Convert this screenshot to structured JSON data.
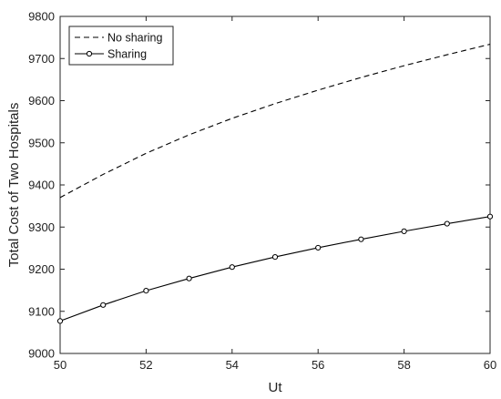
{
  "chart_data": {
    "type": "line",
    "title": "",
    "xlabel": "Ut",
    "ylabel": "Total Cost of Two Hospitals",
    "xlim": [
      50,
      60
    ],
    "ylim": [
      9000,
      9800
    ],
    "xticks": [
      "50",
      "52",
      "54",
      "56",
      "58",
      "60"
    ],
    "yticks": [
      "9000",
      "9100",
      "9200",
      "9300",
      "9400",
      "9500",
      "9600",
      "9700",
      "9800"
    ],
    "grid": false,
    "legend_position": "top-left",
    "x": [
      50,
      51,
      52,
      53,
      54,
      55,
      56,
      57,
      58,
      59,
      60
    ],
    "series": [
      {
        "name": "No sharing",
        "style": "dashed",
        "color": "#000000",
        "values": [
          9370,
          9425,
          9475,
          9519,
          9558,
          9593,
          9625,
          9655,
          9683,
          9709,
          9734
        ]
      },
      {
        "name": "Sharing",
        "style": "solid-circle-markers",
        "color": "#000000",
        "values": [
          9077,
          9115,
          9149,
          9178,
          9205,
          9229,
          9251,
          9271,
          9290,
          9308,
          9325
        ]
      }
    ]
  }
}
